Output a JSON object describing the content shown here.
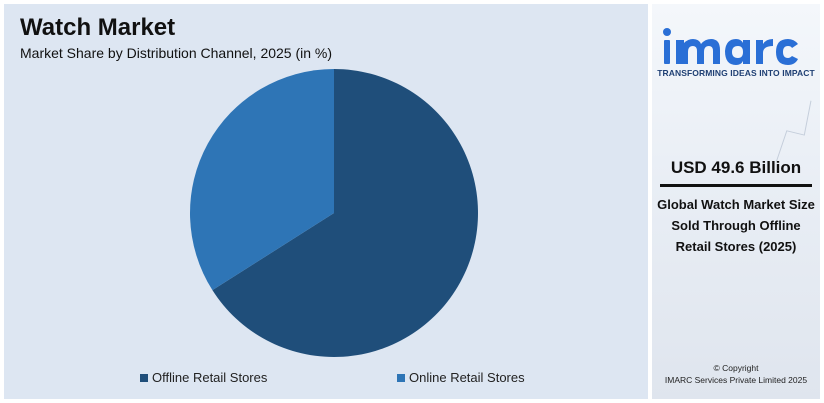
{
  "chart_data": {
    "type": "pie",
    "title": "Watch Market",
    "subtitle": "Market Share by Distribution Channel, 2025 (in %)",
    "categories": [
      "Offline Retail Stores",
      "Online Retail Stores"
    ],
    "values": [
      66,
      34
    ],
    "colors": [
      "#1f4e7a",
      "#2e75b6"
    ],
    "legend_position": "bottom"
  },
  "brand": {
    "logo_text": "imarc",
    "tagline": "TRANSFORMING IDEAS INTO IMPACT",
    "logo_color": "#2a6fd6"
  },
  "stat": {
    "value": "USD 49.6 Billion",
    "description": "Global Watch Market Size Sold Through Offline Retail Stores (2025)"
  },
  "footer": {
    "copyright_line1": "© Copyright",
    "copyright_line2": "IMARC Services Private Limited 2025"
  }
}
